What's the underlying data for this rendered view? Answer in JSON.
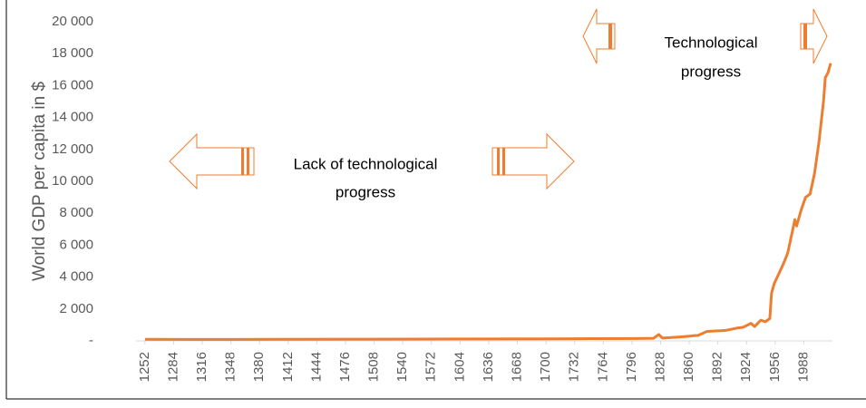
{
  "chart_data": {
    "type": "line",
    "y_label": "World GDP per capita in $",
    "x": [
      1252,
      1300,
      1400,
      1500,
      1600,
      1700,
      1750,
      1800,
      1820,
      1826,
      1830,
      1850,
      1870,
      1880,
      1900,
      1913,
      1920,
      1929,
      1933,
      1940,
      1945,
      1950,
      1952,
      1955,
      1960,
      1965,
      1970,
      1975,
      1978,
      1980,
      1985,
      1990,
      1995,
      2000,
      2005,
      2010,
      2012,
      2015,
      2018
    ],
    "series": [
      {
        "color": "#ed7d31",
        "values": [
          100,
          90,
          100,
          110,
          120,
          130,
          140,
          150,
          160,
          400,
          180,
          250,
          350,
          600,
          650,
          800,
          850,
          1100,
          900,
          1300,
          1200,
          1400,
          3000,
          3600,
          4200,
          4800,
          5500,
          6800,
          7600,
          7200,
          8200,
          9000,
          9200,
          10500,
          12500,
          15000,
          16500,
          16800,
          17400
        ]
      }
    ],
    "xlim": [
      1242,
      2020
    ],
    "xticks": [
      1252,
      1284,
      1316,
      1348,
      1380,
      1412,
      1444,
      1476,
      1508,
      1540,
      1572,
      1604,
      1636,
      1668,
      1700,
      1732,
      1764,
      1796,
      1828,
      1860,
      1892,
      1924,
      1956,
      1988
    ],
    "ylim": [
      0,
      20000
    ],
    "yticks": [
      {
        "value": 0,
        "label": "-"
      },
      {
        "value": 2000,
        "label": "2 000"
      },
      {
        "value": 4000,
        "label": "4 000"
      },
      {
        "value": 6000,
        "label": "6 000"
      },
      {
        "value": 8000,
        "label": "8 000"
      },
      {
        "value": 10000,
        "label": "10 000"
      },
      {
        "value": 12000,
        "label": "12 000"
      },
      {
        "value": 14000,
        "label": "14 000"
      },
      {
        "value": 16000,
        "label": "16 000"
      },
      {
        "value": 18000,
        "label": "18 000"
      },
      {
        "value": 20000,
        "label": "20 000"
      }
    ],
    "annotations": [
      {
        "lines": [
          "Lack of technological",
          "progress"
        ]
      },
      {
        "lines": [
          "Technological",
          "progress"
        ]
      }
    ]
  }
}
